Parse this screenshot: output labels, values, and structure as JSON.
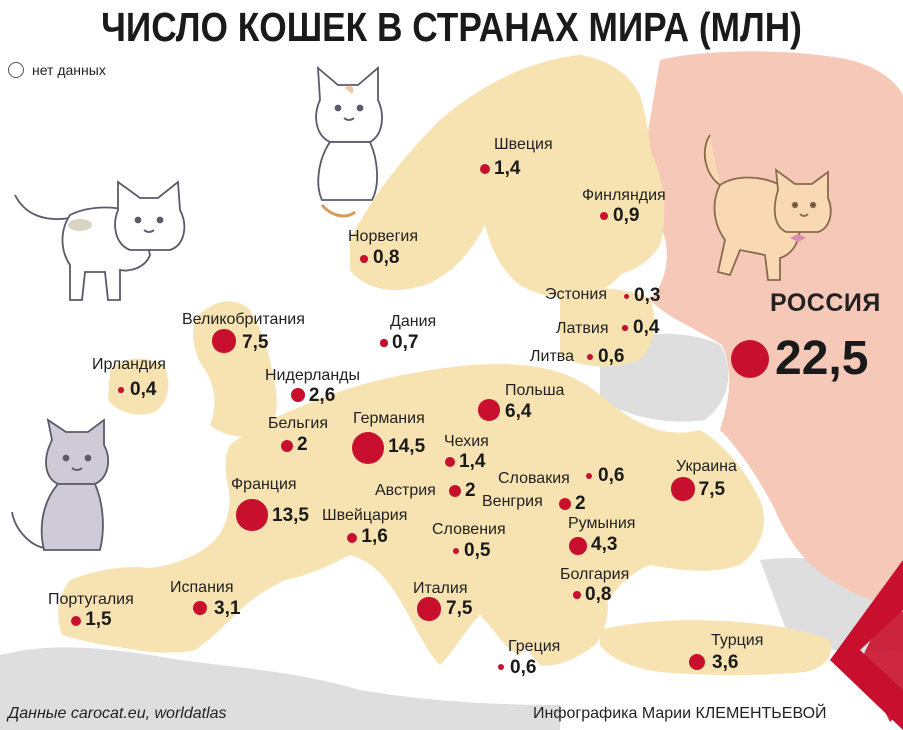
{
  "title": "ЧИСЛО КОШЕК В СТРАНАХ МИРА (МЛН)",
  "legend": {
    "no_data": "нет данных"
  },
  "colors": {
    "land": "#f7e3b2",
    "russia": "#f6c8b8",
    "no_data": "#dedede",
    "sea": "#ffffff",
    "dot": "#c8102e"
  },
  "countries": [
    {
      "name": "Швеция",
      "value": "1,4",
      "cats": 1.4
    },
    {
      "name": "Финляндия",
      "value": "0,9",
      "cats": 0.9
    },
    {
      "name": "Норвегия",
      "value": "0,8",
      "cats": 0.8
    },
    {
      "name": "Эстония",
      "value": "0,3",
      "cats": 0.3
    },
    {
      "name": "Дания",
      "value": "0,7",
      "cats": 0.7
    },
    {
      "name": "Латвия",
      "value": "0,4",
      "cats": 0.4
    },
    {
      "name": "Великобритания",
      "value": "7,5",
      "cats": 7.5
    },
    {
      "name": "Литва",
      "value": "0,6",
      "cats": 0.6
    },
    {
      "name": "Ирландия",
      "value": "0,4",
      "cats": 0.4
    },
    {
      "name": "Нидерланды",
      "value": "2,6",
      "cats": 2.6
    },
    {
      "name": "Польша",
      "value": "6,4",
      "cats": 6.4
    },
    {
      "name": "Бельгия",
      "value": "2",
      "cats": 2
    },
    {
      "name": "Германия",
      "value": "14,5",
      "cats": 14.5
    },
    {
      "name": "Чехия",
      "value": "1,4",
      "cats": 1.4
    },
    {
      "name": "Словакия",
      "value": "0,6",
      "cats": 0.6
    },
    {
      "name": "Украина",
      "value": "7,5",
      "cats": 7.5
    },
    {
      "name": "Франция",
      "value": "13,5",
      "cats": 13.5
    },
    {
      "name": "Австрия",
      "value": "2",
      "cats": 2
    },
    {
      "name": "Венгрия",
      "value": "2",
      "cats": 2
    },
    {
      "name": "Швейцария",
      "value": "1,6",
      "cats": 1.6
    },
    {
      "name": "Словения",
      "value": "0,5",
      "cats": 0.5
    },
    {
      "name": "Румыния",
      "value": "4,3",
      "cats": 4.3
    },
    {
      "name": "Болгария",
      "value": "0,8",
      "cats": 0.8
    },
    {
      "name": "Португалия",
      "value": "1,5",
      "cats": 1.5
    },
    {
      "name": "Испания",
      "value": "3,1",
      "cats": 3.1
    },
    {
      "name": "Италия",
      "value": "7,5",
      "cats": 7.5
    },
    {
      "name": "Греция",
      "value": "0,6",
      "cats": 0.6
    },
    {
      "name": "Турция",
      "value": "3,6",
      "cats": 3.6
    }
  ],
  "russia": {
    "name": "РОССИЯ",
    "value": "22,5",
    "cats": 22.5
  },
  "footer": {
    "source": "Данные carocat.eu, worldatlas",
    "author": "Инфографика Марии КЛЕМЕНТЬЕВОЙ"
  }
}
